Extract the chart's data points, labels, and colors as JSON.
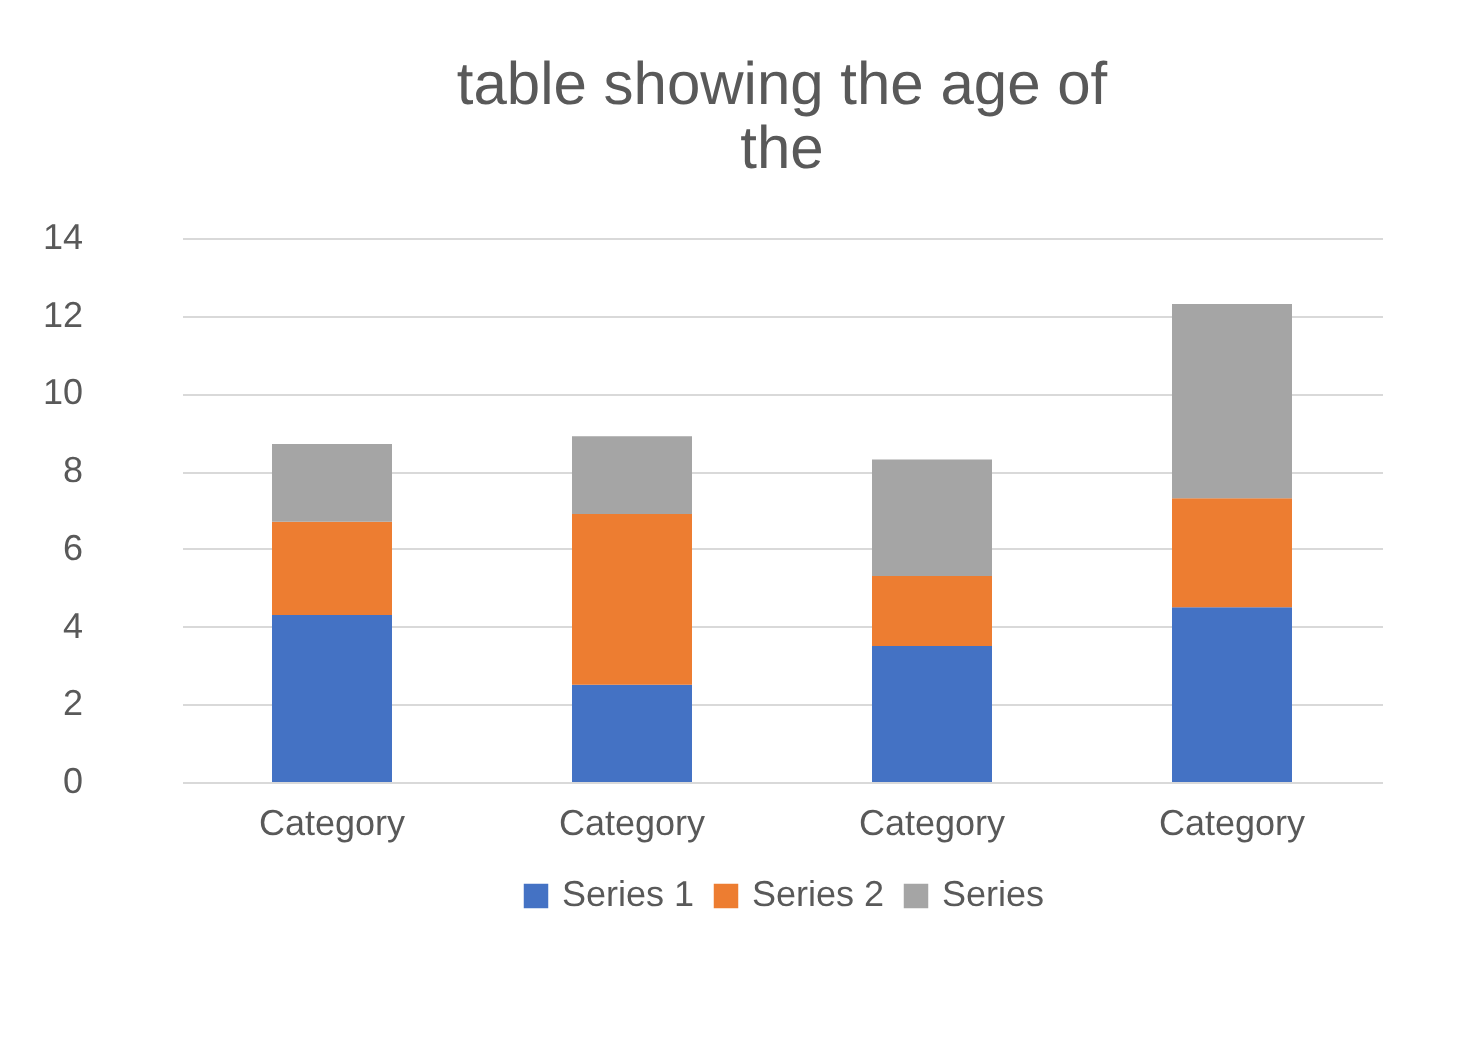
{
  "chart_data": {
    "type": "bar",
    "title": "table showing the age of the",
    "categories": [
      "Category",
      "Category",
      "Category",
      "Category"
    ],
    "series": [
      {
        "name": "Series 1",
        "color": "#4472c4",
        "values": [
          4.3,
          2.5,
          3.5,
          4.5
        ]
      },
      {
        "name": "Series 2",
        "color": "#ed7d31",
        "values": [
          2.4,
          4.4,
          1.8,
          2.8
        ]
      },
      {
        "name": "Series",
        "color": "#a5a5a5",
        "values": [
          2,
          2,
          3,
          5
        ]
      }
    ],
    "stacked": true,
    "ylim": [
      0,
      14
    ],
    "yticks": [
      0,
      2,
      4,
      6,
      8,
      10,
      12,
      14
    ],
    "grid": "y",
    "legend": "bottom"
  }
}
